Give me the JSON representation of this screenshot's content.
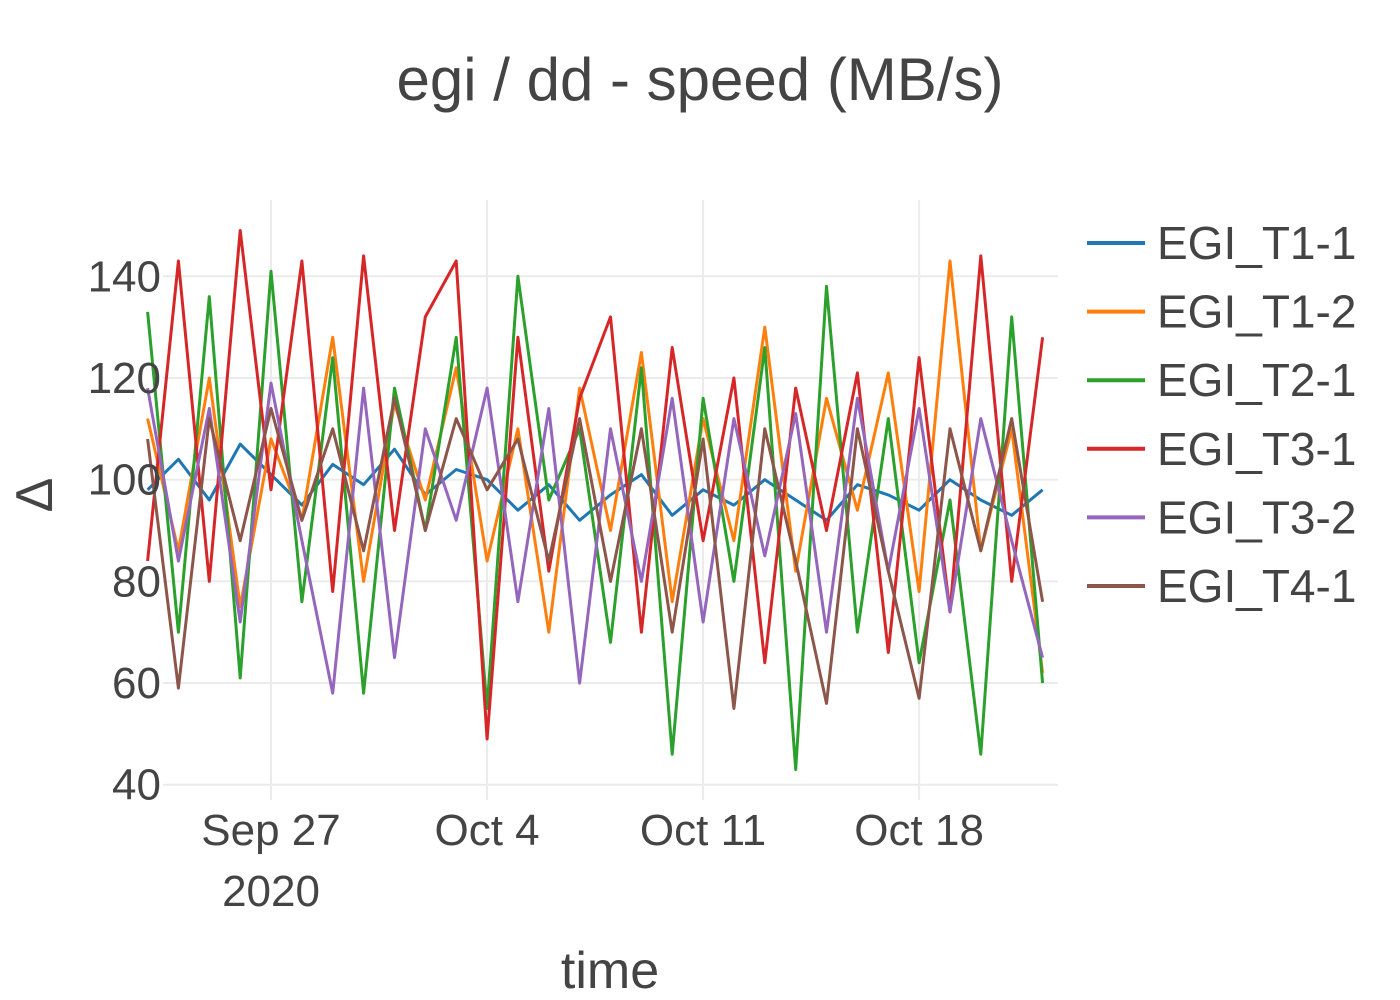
{
  "chart_data": {
    "type": "line",
    "title": "egi / dd - speed (MB/s)",
    "xlabel": "time",
    "ylabel": "Δ",
    "x_range": [
      "2020-09-23T12:00",
      "2020-10-22T12:00"
    ],
    "ylim": [
      37,
      155
    ],
    "x_ticks": [
      {
        "date": "2020-09-27",
        "label": "Sep 27",
        "sublabel": "2020"
      },
      {
        "date": "2020-10-04",
        "label": "Oct 4",
        "sublabel": ""
      },
      {
        "date": "2020-10-11",
        "label": "Oct 11",
        "sublabel": ""
      },
      {
        "date": "2020-10-18",
        "label": "Oct 18",
        "sublabel": ""
      }
    ],
    "y_ticks": [
      40,
      60,
      80,
      100,
      120,
      140
    ],
    "grid": true,
    "legend_position": "right",
    "series": [
      {
        "name": "EGI_T1-1",
        "color": "#1f77b4",
        "x": [
          "2020-09-23",
          "2020-09-24",
          "2020-09-25",
          "2020-09-26",
          "2020-09-27",
          "2020-09-28",
          "2020-09-29",
          "2020-09-30",
          "2020-10-01",
          "2020-10-02",
          "2020-10-03",
          "2020-10-04",
          "2020-10-05",
          "2020-10-06",
          "2020-10-07",
          "2020-10-08",
          "2020-10-09",
          "2020-10-10",
          "2020-10-11",
          "2020-10-12",
          "2020-10-13",
          "2020-10-14",
          "2020-10-15",
          "2020-10-16",
          "2020-10-17",
          "2020-10-18",
          "2020-10-19",
          "2020-10-20",
          "2020-10-21",
          "2020-10-22"
        ],
        "y": [
          98,
          104,
          96,
          107,
          101,
          95,
          103,
          99,
          106,
          97,
          102,
          100,
          94,
          99,
          92,
          97,
          101,
          93,
          98,
          95,
          100,
          96,
          92,
          99,
          97,
          94,
          100,
          96,
          93,
          98
        ]
      },
      {
        "name": "EGI_T1-2",
        "color": "#ff7f0e",
        "x": [
          "2020-09-23",
          "2020-09-24",
          "2020-09-25",
          "2020-09-26",
          "2020-09-27",
          "2020-09-28",
          "2020-09-29",
          "2020-09-30",
          "2020-10-01",
          "2020-10-02",
          "2020-10-03",
          "2020-10-04",
          "2020-10-05",
          "2020-10-06",
          "2020-10-07",
          "2020-10-08",
          "2020-10-09",
          "2020-10-10",
          "2020-10-11",
          "2020-10-12",
          "2020-10-13",
          "2020-10-14",
          "2020-10-15",
          "2020-10-16",
          "2020-10-17",
          "2020-10-18",
          "2020-10-19",
          "2020-10-20",
          "2020-10-21",
          "2020-10-22"
        ],
        "y": [
          112,
          86,
          120,
          75,
          108,
          92,
          128,
          80,
          115,
          96,
          122,
          84,
          110,
          70,
          118,
          90,
          125,
          76,
          112,
          88,
          130,
          82,
          116,
          94,
          121,
          78,
          143,
          86,
          110,
          62
        ]
      },
      {
        "name": "EGI_T2-1",
        "color": "#2ca02c",
        "x": [
          "2020-09-23",
          "2020-09-24",
          "2020-09-25",
          "2020-09-26",
          "2020-09-27",
          "2020-09-28",
          "2020-09-29",
          "2020-09-30",
          "2020-10-01",
          "2020-10-02",
          "2020-10-03",
          "2020-10-04",
          "2020-10-05",
          "2020-10-06",
          "2020-10-07",
          "2020-10-08",
          "2020-10-09",
          "2020-10-10",
          "2020-10-11",
          "2020-10-12",
          "2020-10-13",
          "2020-10-14",
          "2020-10-15",
          "2020-10-16",
          "2020-10-17",
          "2020-10-18",
          "2020-10-19",
          "2020-10-20",
          "2020-10-21",
          "2020-10-22"
        ],
        "y": [
          133,
          70,
          136,
          61,
          141,
          76,
          124,
          58,
          118,
          90,
          128,
          55,
          140,
          96,
          110,
          68,
          122,
          46,
          116,
          80,
          126,
          43,
          138,
          70,
          112,
          64,
          96,
          46,
          132,
          60
        ]
      },
      {
        "name": "EGI_T3-1",
        "color": "#d62728",
        "x": [
          "2020-09-23",
          "2020-09-24",
          "2020-09-25",
          "2020-09-26",
          "2020-09-27",
          "2020-09-28",
          "2020-09-29",
          "2020-09-30",
          "2020-10-01",
          "2020-10-02",
          "2020-10-03",
          "2020-10-04",
          "2020-10-05",
          "2020-10-06",
          "2020-10-07",
          "2020-10-08",
          "2020-10-09",
          "2020-10-10",
          "2020-10-11",
          "2020-10-12",
          "2020-10-13",
          "2020-10-14",
          "2020-10-15",
          "2020-10-16",
          "2020-10-17",
          "2020-10-18",
          "2020-10-19",
          "2020-10-20",
          "2020-10-21",
          "2020-10-22"
        ],
        "y": [
          84,
          143,
          80,
          149,
          98,
          143,
          78,
          144,
          90,
          132,
          143,
          49,
          128,
          82,
          116,
          132,
          70,
          126,
          88,
          120,
          64,
          118,
          90,
          121,
          66,
          124,
          74,
          144,
          80,
          128
        ]
      },
      {
        "name": "EGI_T3-2",
        "color": "#9467bd",
        "x": [
          "2020-09-23",
          "2020-09-24",
          "2020-09-25",
          "2020-09-26",
          "2020-09-27",
          "2020-09-28",
          "2020-09-29",
          "2020-09-30",
          "2020-10-01",
          "2020-10-02",
          "2020-10-03",
          "2020-10-04",
          "2020-10-05",
          "2020-10-06",
          "2020-10-07",
          "2020-10-08",
          "2020-10-09",
          "2020-10-10",
          "2020-10-11",
          "2020-10-12",
          "2020-10-13",
          "2020-10-14",
          "2020-10-15",
          "2020-10-16",
          "2020-10-17",
          "2020-10-18",
          "2020-10-19",
          "2020-10-20",
          "2020-10-21",
          "2020-10-22"
        ],
        "y": [
          118,
          84,
          114,
          72,
          119,
          88,
          58,
          118,
          65,
          110,
          92,
          118,
          76,
          114,
          60,
          110,
          80,
          116,
          72,
          112,
          85,
          113,
          70,
          116,
          82,
          114,
          74,
          112,
          88,
          65
        ]
      },
      {
        "name": "EGI_T4-1",
        "color": "#8c564b",
        "x": [
          "2020-09-23",
          "2020-09-24",
          "2020-09-25",
          "2020-09-26",
          "2020-09-27",
          "2020-09-28",
          "2020-09-29",
          "2020-09-30",
          "2020-10-01",
          "2020-10-02",
          "2020-10-03",
          "2020-10-04",
          "2020-10-05",
          "2020-10-06",
          "2020-10-07",
          "2020-10-08",
          "2020-10-09",
          "2020-10-10",
          "2020-10-11",
          "2020-10-12",
          "2020-10-13",
          "2020-10-14",
          "2020-10-15",
          "2020-10-16",
          "2020-10-17",
          "2020-10-18",
          "2020-10-19",
          "2020-10-20",
          "2020-10-21",
          "2020-10-22"
        ],
        "y": [
          108,
          59,
          112,
          88,
          114,
          92,
          110,
          86,
          116,
          90,
          112,
          98,
          108,
          84,
          112,
          80,
          110,
          70,
          108,
          55,
          110,
          84,
          56,
          110,
          82,
          57,
          110,
          86,
          112,
          76
        ]
      }
    ]
  }
}
